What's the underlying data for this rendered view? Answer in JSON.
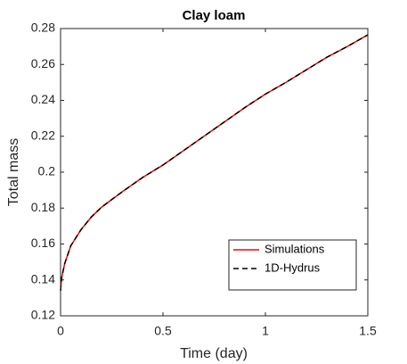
{
  "chart_data": {
    "type": "line",
    "title": "Clay loam",
    "x_label": "Time (day)",
    "y_label": "Total mass",
    "x": [
      0,
      0.005,
      0.02,
      0.05,
      0.1,
      0.15,
      0.2,
      0.3,
      0.4,
      0.5,
      0.6,
      0.7,
      0.8,
      0.9,
      1.0,
      1.1,
      1.2,
      1.3,
      1.4,
      1.5
    ],
    "series": [
      {
        "name": "Simulations",
        "color": "#ff0000",
        "line_style": "solid",
        "values": [
          0.134,
          0.141,
          0.149,
          0.159,
          0.168,
          0.175,
          0.1805,
          0.189,
          0.197,
          0.204,
          0.212,
          0.22,
          0.228,
          0.236,
          0.2435,
          0.25,
          0.257,
          0.264,
          0.27,
          0.2765
        ]
      },
      {
        "name": "1D-Hydrus",
        "color": "#000000",
        "line_style": "dashed",
        "values": [
          0.134,
          0.141,
          0.149,
          0.159,
          0.168,
          0.175,
          0.1805,
          0.189,
          0.197,
          0.204,
          0.212,
          0.22,
          0.228,
          0.236,
          0.2435,
          0.25,
          0.257,
          0.264,
          0.27,
          0.2765
        ]
      }
    ],
    "xlim": [
      0,
      1.5
    ],
    "ylim": [
      0.12,
      0.28
    ],
    "xticks": [
      0,
      0.5,
      1,
      1.5
    ],
    "yticks": [
      0.12,
      0.14,
      0.16,
      0.18,
      0.2,
      0.22,
      0.24,
      0.26,
      0.28
    ],
    "grid": false,
    "legend": "lower right"
  }
}
